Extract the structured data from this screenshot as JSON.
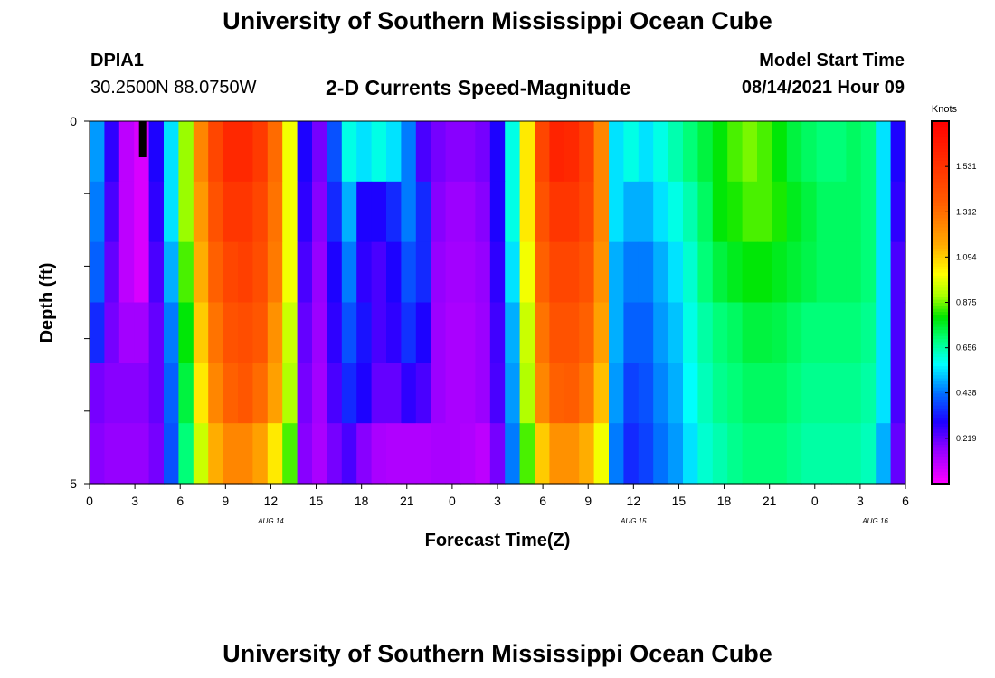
{
  "page": {
    "title_top": "University of Southern Mississippi Ocean Cube",
    "title_bottom": "University of Southern Mississippi Ocean Cube",
    "station_id": "DPIA1",
    "station_coords": "30.2500N  88.0750W",
    "chart_title": "2-D Currents Speed-Magnitude",
    "model_start_label": "Model Start Time",
    "model_start_value": "08/14/2021 Hour 09"
  },
  "chart_data": {
    "type": "heatmap",
    "title": "2-D Currents Speed-Magnitude",
    "xlabel": "Forecast Time(Z)",
    "ylabel": "Depth (ft)",
    "ylim": [
      0,
      5
    ],
    "y_tick_labels": [
      "0",
      "5"
    ],
    "y_tick_values": [
      0,
      1,
      2,
      3,
      4,
      5
    ],
    "x_tick_labels": [
      "0",
      "3",
      "6",
      "9",
      "12",
      "15",
      "18",
      "21",
      "0",
      "3",
      "6",
      "9",
      "12",
      "15",
      "18",
      "21",
      "0",
      "3",
      "6"
    ],
    "date_labels": [
      {
        "text": "AUG 14",
        "hour": 12
      },
      {
        "text": "AUG 15",
        "hour": 36
      },
      {
        "text": "AUG 16",
        "hour": 52
      }
    ],
    "hours": [
      0,
      1,
      2,
      3,
      4,
      5,
      6,
      7,
      8,
      9,
      10,
      11,
      12,
      13,
      14,
      15,
      16,
      17,
      18,
      19,
      20,
      21,
      22,
      23,
      24,
      25,
      26,
      27,
      28,
      29,
      30,
      31,
      32,
      33,
      34,
      35,
      36,
      37,
      38,
      39,
      40,
      41,
      42,
      43,
      44,
      45,
      46,
      47,
      48,
      49,
      50,
      51,
      52,
      53,
      54
    ],
    "depths": [
      0,
      1,
      2,
      3,
      4,
      5
    ],
    "values": [
      [
        0.48,
        0.28,
        0.1,
        0.06,
        0.3,
        0.55,
        0.9,
        1.25,
        1.45,
        1.58,
        1.58,
        1.5,
        1.32,
        1.0,
        0.3,
        0.2,
        0.4,
        0.6,
        0.55,
        0.6,
        0.55,
        0.45,
        0.25,
        0.2,
        0.18,
        0.18,
        0.2,
        0.3,
        0.6,
        1.05,
        1.45,
        1.6,
        1.58,
        1.48,
        1.25,
        0.55,
        0.6,
        0.55,
        0.6,
        0.65,
        0.7,
        0.75,
        0.8,
        0.85,
        0.88,
        0.85,
        0.8,
        0.75,
        0.72,
        0.7,
        0.7,
        0.72,
        0.7,
        0.55,
        0.3
      ],
      [
        0.45,
        0.25,
        0.1,
        0.06,
        0.28,
        0.55,
        0.9,
        1.2,
        1.4,
        1.52,
        1.52,
        1.45,
        1.3,
        1.0,
        0.28,
        0.18,
        0.35,
        0.5,
        0.3,
        0.3,
        0.35,
        0.45,
        0.35,
        0.18,
        0.15,
        0.15,
        0.18,
        0.3,
        0.6,
        1.05,
        1.4,
        1.52,
        1.52,
        1.45,
        1.25,
        0.55,
        0.5,
        0.5,
        0.55,
        0.6,
        0.65,
        0.72,
        0.8,
        0.82,
        0.85,
        0.85,
        0.82,
        0.78,
        0.75,
        0.72,
        0.72,
        0.72,
        0.7,
        0.55,
        0.28
      ],
      [
        0.42,
        0.22,
        0.1,
        0.06,
        0.25,
        0.5,
        0.85,
        1.15,
        1.35,
        1.45,
        1.48,
        1.42,
        1.28,
        1.0,
        0.25,
        0.16,
        0.3,
        0.45,
        0.28,
        0.25,
        0.3,
        0.4,
        0.35,
        0.16,
        0.14,
        0.14,
        0.16,
        0.28,
        0.55,
        1.0,
        1.35,
        1.45,
        1.45,
        1.4,
        1.22,
        0.5,
        0.45,
        0.45,
        0.5,
        0.55,
        0.62,
        0.7,
        0.75,
        0.78,
        0.8,
        0.8,
        0.78,
        0.76,
        0.74,
        0.72,
        0.72,
        0.72,
        0.7,
        0.55,
        0.25
      ],
      [
        0.35,
        0.2,
        0.14,
        0.14,
        0.22,
        0.45,
        0.8,
        1.1,
        1.3,
        1.4,
        1.42,
        1.38,
        1.22,
        0.95,
        0.22,
        0.15,
        0.28,
        0.4,
        0.32,
        0.25,
        0.28,
        0.36,
        0.3,
        0.15,
        0.13,
        0.13,
        0.15,
        0.26,
        0.5,
        0.95,
        1.3,
        1.4,
        1.4,
        1.35,
        1.18,
        0.5,
        0.42,
        0.42,
        0.48,
        0.52,
        0.6,
        0.66,
        0.7,
        0.72,
        0.75,
        0.75,
        0.74,
        0.72,
        0.7,
        0.7,
        0.7,
        0.7,
        0.68,
        0.55,
        0.25
      ],
      [
        0.2,
        0.18,
        0.18,
        0.18,
        0.22,
        0.42,
        0.75,
        1.05,
        1.25,
        1.35,
        1.38,
        1.32,
        1.18,
        0.92,
        0.2,
        0.14,
        0.25,
        0.35,
        0.3,
        0.22,
        0.22,
        0.28,
        0.25,
        0.15,
        0.13,
        0.13,
        0.15,
        0.25,
        0.48,
        0.92,
        1.25,
        1.35,
        1.36,
        1.3,
        1.12,
        0.48,
        0.38,
        0.4,
        0.46,
        0.5,
        0.58,
        0.64,
        0.68,
        0.7,
        0.72,
        0.72,
        0.72,
        0.7,
        0.68,
        0.68,
        0.68,
        0.68,
        0.66,
        0.55,
        0.25
      ],
      [
        0.18,
        0.16,
        0.16,
        0.16,
        0.2,
        0.4,
        0.7,
        0.95,
        1.15,
        1.25,
        1.25,
        1.18,
        1.05,
        0.85,
        0.18,
        0.13,
        0.2,
        0.25,
        0.18,
        0.13,
        0.12,
        0.12,
        0.12,
        0.13,
        0.13,
        0.12,
        0.1,
        0.2,
        0.45,
        0.85,
        1.1,
        1.22,
        1.22,
        1.15,
        1.0,
        0.45,
        0.35,
        0.38,
        0.44,
        0.48,
        0.55,
        0.62,
        0.65,
        0.68,
        0.7,
        0.7,
        0.7,
        0.68,
        0.66,
        0.66,
        0.66,
        0.66,
        0.64,
        0.5,
        0.22
      ]
    ],
    "colorbar": {
      "label": "Knots",
      "min": 0.0,
      "max": 1.75,
      "tick_values": [
        0.219,
        0.438,
        0.656,
        0.875,
        1.094,
        1.312,
        1.531
      ],
      "tick_labels": [
        "0.219",
        "0.438",
        "0.656",
        "0.875",
        "1.094",
        "1.312",
        "1.531"
      ]
    },
    "grid": false
  }
}
